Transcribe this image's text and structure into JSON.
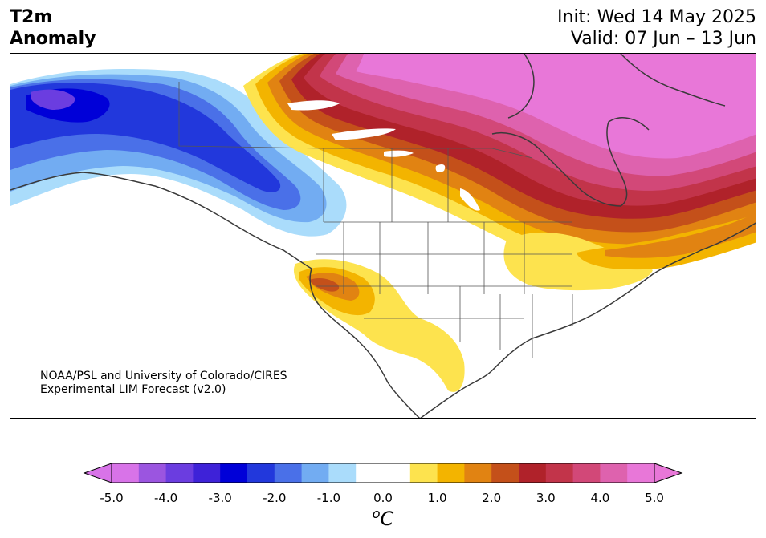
{
  "header": {
    "variable_line1": "T2m",
    "variable_line2": "Anomaly",
    "init": "Init: Wed 14 May 2025",
    "valid": "Valid: 07 Jun – 13 Jun"
  },
  "credit": {
    "line1": "NOAA/PSL and University of Colorado/CIRES",
    "line2": "Experimental LIM Forecast (v2.0)"
  },
  "colorbar": {
    "ticks": [
      "-5.0",
      "-4.0",
      "-3.0",
      "-2.0",
      "-1.0",
      "0.0",
      "1.0",
      "2.0",
      "3.0",
      "4.0",
      "5.0"
    ],
    "unit_prefix": "o",
    "unit": "C",
    "colors": [
      "#d873e8",
      "#9b55e0",
      "#6b3de0",
      "#3e22d8",
      "#0000d8",
      "#2238dc",
      "#4a70e8",
      "#72acf2",
      "#aadcfb",
      "#ffffff",
      "#ffffff",
      "#fde34e",
      "#f3b400",
      "#e18312",
      "#c4501a",
      "#b0222a",
      "#c2344a",
      "#d24878",
      "#de62ae",
      "#e877d8"
    ]
  },
  "legend_colors": {
    "land_outline": "#3a3a3a",
    "state_lines": "#555555"
  }
}
